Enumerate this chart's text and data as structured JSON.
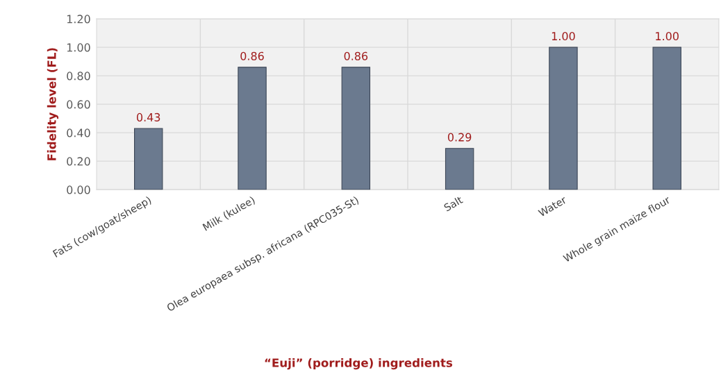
{
  "chart_data": {
    "type": "bar",
    "xlabel": "“Euji” (porridge) ingredients",
    "ylabel": "Fidelity level (FL)",
    "categories": [
      "Fats (cow/goat/sheep)",
      "Milk (kulee)",
      "Olea europaea subsp. africana (RPC035-St)",
      "Salt",
      "Water",
      "Whole grain maize flour"
    ],
    "values": [
      0.43,
      0.86,
      0.86,
      0.29,
      1.0,
      1.0
    ],
    "value_labels": [
      "0.43",
      "0.86",
      "0.86",
      "0.29",
      "1.00",
      "1.00"
    ],
    "color": "#6b7a8f",
    "ylim": [
      0,
      1.2
    ],
    "yticks": [
      {
        "value": 0,
        "label": "0.00"
      },
      {
        "value": 0.2,
        "label": "0.20"
      },
      {
        "value": 0.4,
        "label": "0.40"
      },
      {
        "value": 0.6,
        "label": "0.60"
      },
      {
        "value": 0.8,
        "label": "0.80"
      },
      {
        "value": 1.0,
        "label": "1.00"
      },
      {
        "value": 1.2,
        "label": "1.20"
      }
    ],
    "grid": true,
    "legend": false
  }
}
